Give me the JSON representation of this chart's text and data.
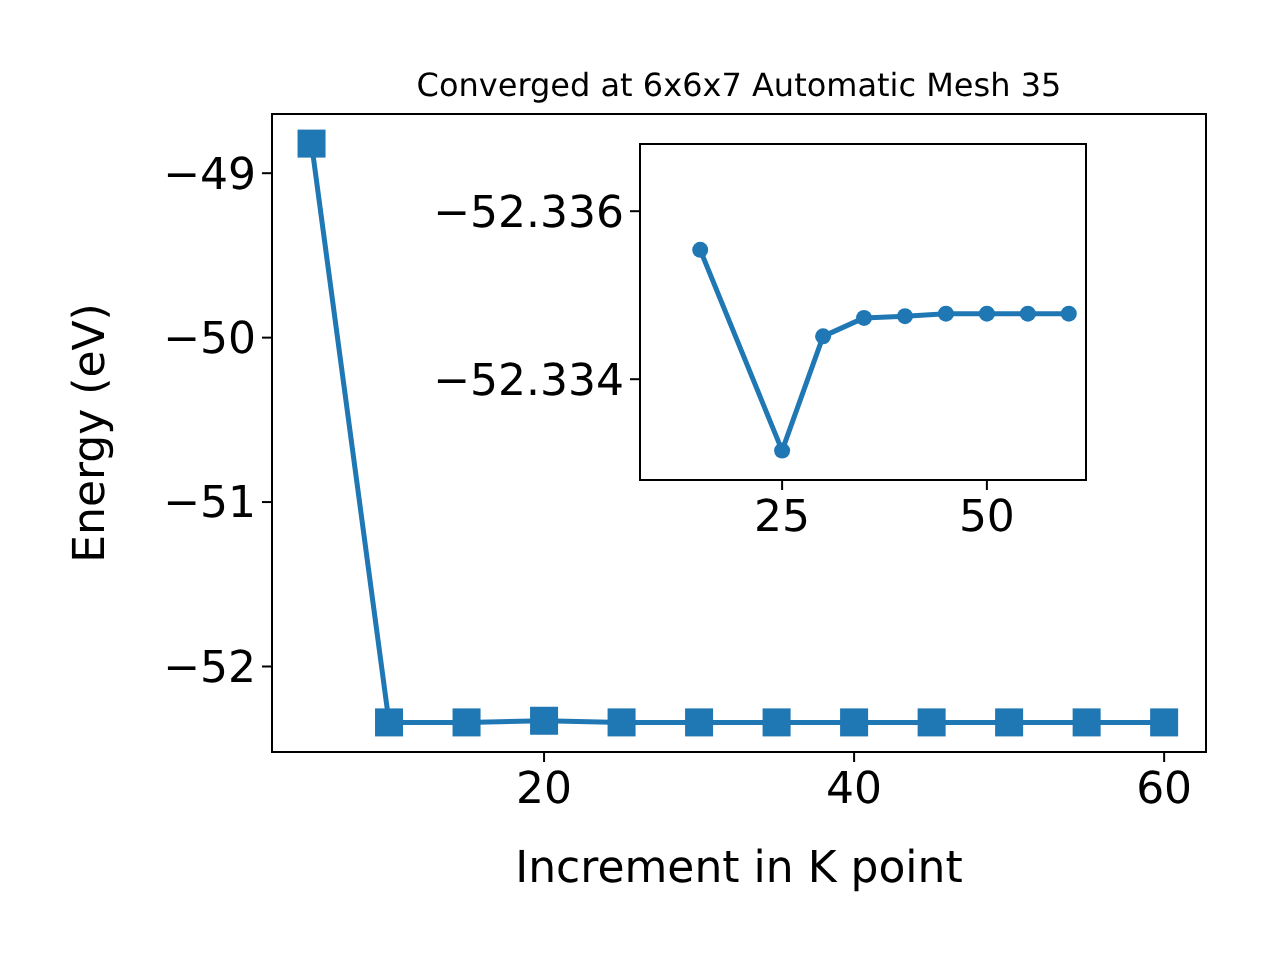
{
  "chart_data": [
    {
      "type": "line",
      "title": "Converged at 6x6x7 Automatic Mesh 35",
      "xlabel": "Increment in K point",
      "ylabel": "Energy (eV)",
      "marker": "square",
      "x": [
        5,
        10,
        15,
        20,
        25,
        30,
        35,
        40,
        45,
        50,
        55,
        60
      ],
      "series": [
        {
          "color": "#1f77b4",
          "values": [
            -48.82,
            -52.34,
            -52.34,
            -52.33,
            -52.34,
            -52.34,
            -52.34,
            -52.34,
            -52.34,
            -52.34,
            -52.34,
            -52.34
          ]
        }
      ],
      "xlim": [
        2.45,
        62.7
      ],
      "xticks": [
        20,
        40,
        60
      ],
      "ylim": [
        -52.52,
        -48.64
      ],
      "yticks": [
        -52,
        -51,
        -50,
        -49
      ]
    },
    {
      "type": "line",
      "marker": "circle",
      "x": [
        15,
        25,
        30,
        35,
        40,
        45,
        50,
        55,
        60
      ],
      "series": [
        {
          "color": "#1f77b4",
          "values": [
            -52.33554,
            -52.33315,
            -52.33451,
            -52.33473,
            -52.33475,
            -52.33478,
            -52.33478,
            -52.33478,
            -52.33478
          ]
        }
      ],
      "xlim": [
        7.65,
        62.1
      ],
      "xticks": [
        25,
        50
      ],
      "ylim": [
        -52.3328,
        -52.3368
      ],
      "yticks": [
        -52.336,
        -52.334
      ]
    }
  ]
}
